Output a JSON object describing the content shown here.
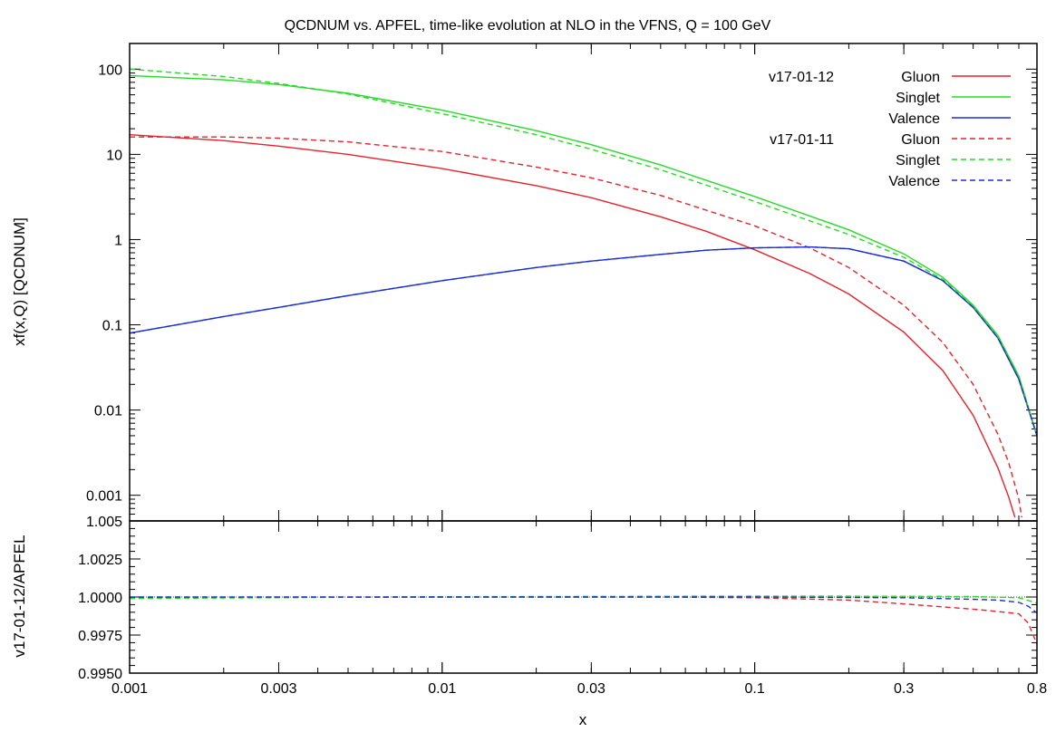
{
  "chart_data": [
    {
      "type": "line",
      "title": "QCDNUM vs. APFEL, time-like evolution at NLO in the VFNS, Q = 100 GeV",
      "ylabel": "xf(x,Q) [QCDNUM]",
      "xscale": "log",
      "yscale": "log",
      "xlim": [
        0.001,
        0.8
      ],
      "ylim": [
        0.0005,
        200
      ],
      "yticks": [
        {
          "value": 100,
          "label": "100"
        },
        {
          "value": 10,
          "label": "10"
        },
        {
          "value": 1,
          "label": "1"
        },
        {
          "value": 0.1,
          "label": "0.1"
        },
        {
          "value": 0.01,
          "label": "0.01"
        },
        {
          "value": 0.001,
          "label": "0.001"
        }
      ],
      "legend_position": "top-right",
      "legend_groups": [
        "v17-01-12",
        "v17-01-11"
      ],
      "series": [
        {
          "name": "Gluon",
          "group": "v17-01-12",
          "color": "#e8212c",
          "dash": "solid",
          "x": [
            0.001,
            0.002,
            0.003,
            0.005,
            0.01,
            0.02,
            0.03,
            0.05,
            0.07,
            0.1,
            0.15,
            0.2,
            0.3,
            0.4,
            0.5,
            0.6,
            0.65,
            0.68
          ],
          "y": [
            17,
            14.5,
            12.5,
            10,
            6.8,
            4.3,
            3.1,
            1.85,
            1.25,
            0.76,
            0.4,
            0.23,
            0.082,
            0.029,
            0.0087,
            0.0021,
            0.00095,
            0.00055
          ]
        },
        {
          "name": "Singlet",
          "group": "v17-01-12",
          "color": "#22dd22",
          "dash": "solid",
          "x": [
            0.001,
            0.002,
            0.003,
            0.005,
            0.01,
            0.02,
            0.03,
            0.05,
            0.1,
            0.2,
            0.3,
            0.4,
            0.5,
            0.6,
            0.7,
            0.8
          ],
          "y": [
            84,
            75,
            66,
            52,
            33,
            19,
            13,
            7.5,
            3.2,
            1.3,
            0.68,
            0.36,
            0.17,
            0.075,
            0.025,
            0.005
          ]
        },
        {
          "name": "Valence",
          "group": "v17-01-12",
          "color": "#1a2ed6",
          "dash": "solid",
          "x": [
            0.001,
            0.002,
            0.003,
            0.005,
            0.01,
            0.02,
            0.03,
            0.05,
            0.07,
            0.1,
            0.15,
            0.2,
            0.3,
            0.4,
            0.5,
            0.6,
            0.7,
            0.8
          ],
          "y": [
            0.08,
            0.125,
            0.16,
            0.22,
            0.33,
            0.47,
            0.56,
            0.67,
            0.75,
            0.8,
            0.82,
            0.78,
            0.56,
            0.33,
            0.16,
            0.07,
            0.023,
            0.005
          ]
        },
        {
          "name": "Gluon",
          "group": "v17-01-11",
          "color": "#e8212c",
          "dash": "dashed",
          "x": [
            0.001,
            0.002,
            0.003,
            0.005,
            0.01,
            0.02,
            0.03,
            0.05,
            0.1,
            0.15,
            0.2,
            0.3,
            0.4,
            0.5,
            0.6,
            0.65,
            0.7,
            0.715
          ],
          "y": [
            16,
            16,
            15.5,
            14,
            10.8,
            7.1,
            5.3,
            3.3,
            1.45,
            0.8,
            0.47,
            0.17,
            0.062,
            0.02,
            0.0052,
            0.0024,
            0.0009,
            0.00055
          ]
        },
        {
          "name": "Singlet",
          "group": "v17-01-11",
          "color": "#22dd22",
          "dash": "dashed",
          "x": [
            0.001,
            0.002,
            0.003,
            0.005,
            0.01,
            0.02,
            0.03,
            0.05,
            0.1,
            0.2,
            0.3,
            0.4,
            0.5,
            0.6,
            0.7,
            0.8
          ],
          "y": [
            100,
            82,
            68,
            51,
            30,
            17,
            11.5,
            6.6,
            2.8,
            1.15,
            0.62,
            0.34,
            0.165,
            0.073,
            0.025,
            0.005
          ]
        },
        {
          "name": "Valence",
          "group": "v17-01-11",
          "color": "#1a2ed6",
          "dash": "dashed",
          "x": [
            0.001,
            0.002,
            0.003,
            0.005,
            0.01,
            0.02,
            0.03,
            0.05,
            0.07,
            0.1,
            0.15,
            0.2,
            0.3,
            0.4,
            0.5,
            0.6,
            0.7,
            0.8
          ],
          "y": [
            0.08,
            0.125,
            0.16,
            0.22,
            0.33,
            0.47,
            0.56,
            0.67,
            0.75,
            0.8,
            0.82,
            0.78,
            0.56,
            0.33,
            0.16,
            0.07,
            0.023,
            0.005
          ]
        }
      ]
    },
    {
      "type": "line",
      "xlabel": "x",
      "ylabel": "v17-01-12/APFEL",
      "xscale": "log",
      "xlim": [
        0.001,
        0.8
      ],
      "ylim": [
        0.995,
        1.005
      ],
      "xticks": [
        {
          "value": 0.001,
          "label": "0.001"
        },
        {
          "value": 0.003,
          "label": "0.003"
        },
        {
          "value": 0.01,
          "label": "0.01"
        },
        {
          "value": 0.03,
          "label": "0.03"
        },
        {
          "value": 0.1,
          "label": "0.1"
        },
        {
          "value": 0.3,
          "label": "0.3"
        },
        {
          "value": 0.8,
          "label": "0.8"
        }
      ],
      "yticks": [
        {
          "value": 1.005,
          "label": "1.005"
        },
        {
          "value": 1.0025,
          "label": "1.0025"
        },
        {
          "value": 1.0,
          "label": "1.0000"
        },
        {
          "value": 0.9975,
          "label": "0.9975"
        },
        {
          "value": 0.995,
          "label": "0.9950"
        }
      ],
      "reference_line": 1.0,
      "series": [
        {
          "name": "Gluon",
          "color": "#e8212c",
          "dash": "dashed",
          "x": [
            0.001,
            0.01,
            0.05,
            0.1,
            0.2,
            0.3,
            0.4,
            0.5,
            0.6,
            0.7,
            0.75,
            0.8
          ],
          "y": [
            0.99995,
            1.0,
            1.0,
            0.99995,
            0.9998,
            0.99955,
            0.99935,
            0.9992,
            0.99905,
            0.9989,
            0.9983,
            0.9969
          ]
        },
        {
          "name": "Singlet",
          "color": "#22dd22",
          "dash": "dashed",
          "x": [
            0.001,
            0.01,
            0.05,
            0.1,
            0.3,
            0.5,
            0.7,
            0.8
          ],
          "y": [
            0.9999,
            1.00002,
            1.00005,
            1.00006,
            1.00005,
            1.00003,
            0.99995,
            0.9996
          ]
        },
        {
          "name": "Valence",
          "color": "#1a2ed6",
          "dash": "dashed",
          "x": [
            0.001,
            0.01,
            0.05,
            0.1,
            0.3,
            0.5,
            0.6,
            0.7,
            0.75,
            0.8
          ],
          "y": [
            1.0,
            1.0,
            1.0,
            1.0,
            0.99995,
            0.99985,
            0.9998,
            0.99965,
            0.9994,
            0.99895
          ]
        }
      ]
    }
  ]
}
